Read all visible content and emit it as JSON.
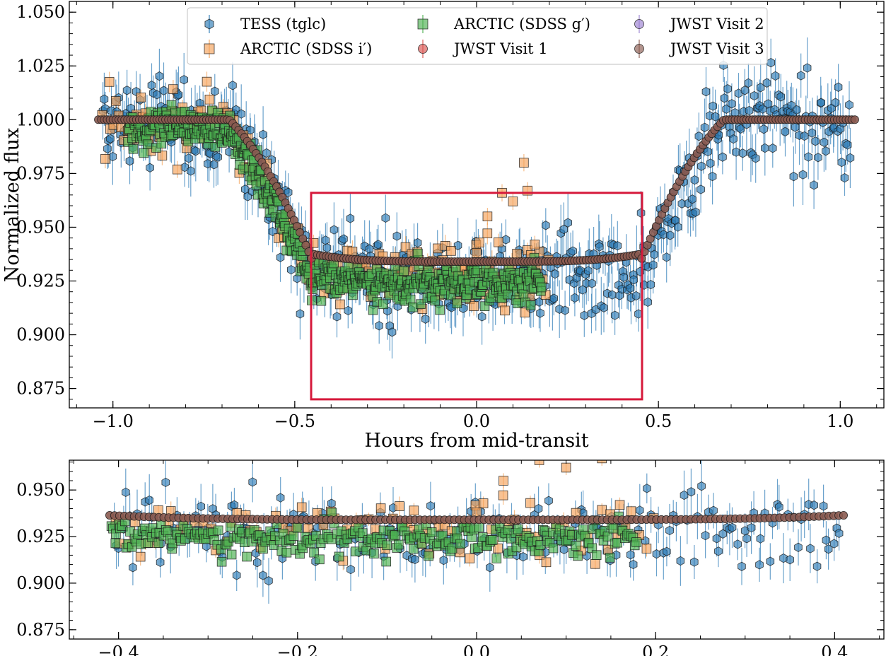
{
  "chart_data": [
    {
      "id": "main",
      "type": "scatter",
      "title": "",
      "xlabel": "Hours from mid-transit",
      "ylabel": "Normalized flux",
      "xlim": [
        -1.12,
        1.12
      ],
      "ylim": [
        0.866,
        1.055
      ],
      "xticks": [
        -1.0,
        -0.5,
        0.0,
        0.5,
        1.0
      ],
      "xtick_labels": [
        "−1.0",
        "−0.5",
        "0.0",
        "0.5",
        "1.0"
      ],
      "yticks": [
        0.875,
        0.9,
        0.925,
        0.95,
        0.975,
        1.0,
        1.025,
        1.05
      ],
      "ytick_labels": [
        "0.875",
        "0.900",
        "0.925",
        "0.950",
        "0.975",
        "1.000",
        "1.025",
        "1.050"
      ],
      "grid": false,
      "legend_position": "top",
      "highlight_box": {
        "x": [
          -0.455,
          0.455
        ],
        "y": [
          0.87,
          0.966
        ],
        "color": "#d6193b"
      },
      "transit_model": {
        "depth": 0.066,
        "t1": 0.68,
        "t2": 0.45
      },
      "series": [
        {
          "name": "TESS (tglc)",
          "marker": "hexagon",
          "color": "#2c7bb6",
          "n": 520,
          "xrange": [
            -1.03,
            1.03
          ],
          "scatter": 0.011,
          "offset": -0.008,
          "yerr": 0.011
        },
        {
          "name": "ARCTIC (SDSS i′)",
          "marker": "square",
          "color": "#f4a259",
          "n": 170,
          "xrange": [
            -1.03,
            0.2
          ],
          "scatter": 0.008,
          "offset": -0.006,
          "yerr": 0.004,
          "outliers": [
            {
              "x": 0.03,
              "y": 0.955
            },
            {
              "x": 0.07,
              "y": 0.966
            },
            {
              "x": 0.1,
              "y": 0.962
            },
            {
              "x": 0.13,
              "y": 0.98
            },
            {
              "x": 0.14,
              "y": 0.967
            },
            {
              "x": 0.06,
              "y": 0.943
            },
            {
              "x": 0.16,
              "y": 0.942
            },
            {
              "x": 0.0,
              "y": 0.938
            },
            {
              "x": -0.07,
              "y": 0.939
            }
          ]
        },
        {
          "name": "ARCTIC (SDSS g′)",
          "marker": "square",
          "color": "#4caf50",
          "n": 520,
          "xrange": [
            -0.96,
            0.18
          ],
          "scatter": 0.0045,
          "offset": -0.01,
          "yerr": 0.002
        },
        {
          "name": "JWST Visit 1",
          "marker": "circle",
          "color": "#d9534f",
          "n": 0,
          "xrange": [
            -1.04,
            1.04
          ],
          "scatter": 0.0,
          "offset": 0.0,
          "yerr": 0.0
        },
        {
          "name": "JWST Visit 2",
          "marker": "circle",
          "color": "#9b7fd1",
          "n": 0,
          "xrange": [
            -1.04,
            1.04
          ],
          "scatter": 0.0,
          "offset": 0.0,
          "yerr": 0.0
        },
        {
          "name": "JWST Visit 3",
          "marker": "circle",
          "color": "#8a5a50",
          "n": 260,
          "xrange": [
            -1.04,
            1.04
          ],
          "scatter": 0.0,
          "offset": 0.0,
          "yerr": 0.0
        }
      ]
    },
    {
      "id": "zoom",
      "type": "scatter",
      "title": "",
      "xlabel": "",
      "ylabel": "",
      "xlim": [
        -0.455,
        0.455
      ],
      "ylim": [
        0.87,
        0.966
      ],
      "xticks": [
        -0.4,
        -0.2,
        0.0,
        0.2,
        0.4
      ],
      "xtick_labels": [
        "−0.4",
        "−0.2",
        "0.0",
        "0.2",
        "0.4"
      ],
      "yticks": [
        0.875,
        0.9,
        0.925,
        0.95
      ],
      "ytick_labels": [
        "0.875",
        "0.900",
        "0.925",
        "0.950"
      ],
      "grid": false,
      "series_ranges": {
        "TESS (tglc)": [
          -0.41,
          0.41
        ],
        "ARCTIC (SDSS i′)": [
          -0.41,
          0.2
        ],
        "ARCTIC (SDSS g′)": [
          -0.41,
          0.18
        ],
        "JWST Visit 3": [
          -0.41,
          0.41
        ]
      }
    }
  ]
}
